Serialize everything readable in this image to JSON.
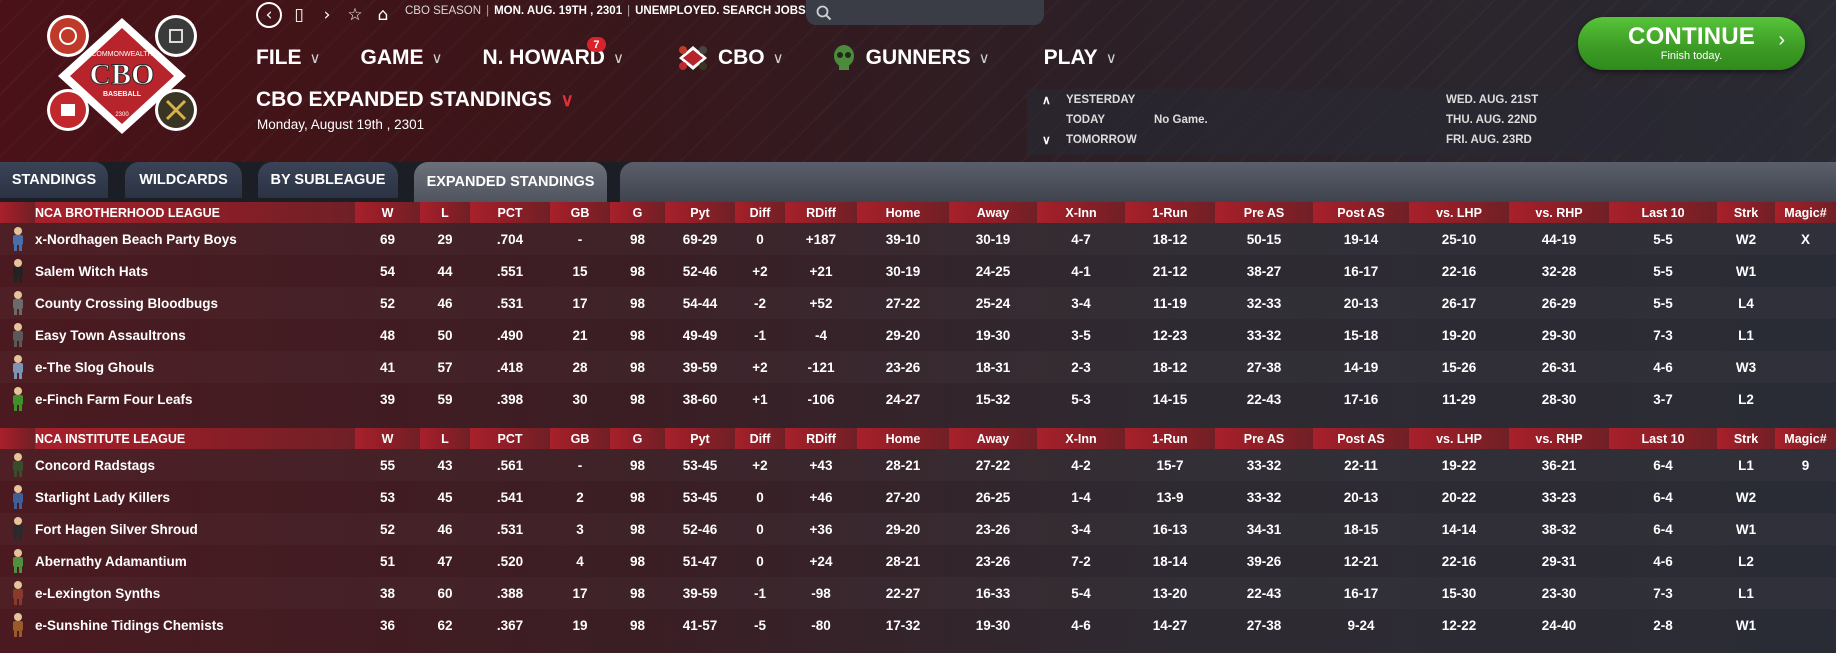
{
  "header": {
    "status": {
      "season": "CBO SEASON",
      "date": "MON. AUG. 19TH , 2301",
      "job": "UNEMPLOYED. SEARCH JOBS..."
    },
    "search_placeholder": "",
    "menu": [
      {
        "label": "FILE"
      },
      {
        "label": "GAME"
      },
      {
        "label": "N. HOWARD",
        "badge": "7"
      },
      {
        "label": "CBO"
      },
      {
        "label": "GUNNERS"
      },
      {
        "label": "PLAY"
      }
    ],
    "page_title": "CBO EXPANDED STANDINGS",
    "page_date": "Monday, August 19th , 2301",
    "logo": {
      "top": "COMMONWEALTH",
      "main": "CBO",
      "sub": "BASEBALL",
      "year": "2300"
    },
    "schedule": {
      "yesterday_label": "YESTERDAY",
      "today_label": "TODAY",
      "today_value": "No Game.",
      "tomorrow_label": "TOMORROW",
      "upcoming": [
        "WED. AUG. 21ST",
        "THU. AUG. 22ND",
        "FRI. AUG. 23RD"
      ]
    },
    "continue": {
      "label": "CONTINUE",
      "sub": "Finish today."
    }
  },
  "tabs": [
    "STANDINGS",
    "WILDCARDS",
    "BY SUBLEAGUE",
    "EXPANDED STANDINGS"
  ],
  "columns": [
    "W",
    "L",
    "PCT",
    "GB",
    "G",
    "Pyt",
    "Diff",
    "RDiff",
    "Home",
    "Away",
    "X-Inn",
    "1-Run",
    "Pre AS",
    "Post AS",
    "vs. LHP",
    "vs. RHP",
    "Last 10",
    "Strk",
    "Magic#"
  ],
  "leagues": [
    {
      "name": "NCA BROTHERHOOD LEAGUE",
      "teams": [
        {
          "name": "x-Nordhagen Beach Party Boys",
          "W": "69",
          "L": "29",
          "PCT": ".704",
          "GB": "-",
          "G": "98",
          "Pyt": "69-29",
          "Diff": "0",
          "RDiff": "+187",
          "Home": "39-10",
          "Away": "30-19",
          "XInn": "4-7",
          "OneRun": "18-12",
          "PreAS": "50-15",
          "PostAS": "19-14",
          "vsLHP": "25-10",
          "vsRHP": "44-19",
          "Last10": "5-5",
          "Strk": "W2",
          "Magic": "X"
        },
        {
          "name": "Salem Witch Hats",
          "W": "54",
          "L": "44",
          "PCT": ".551",
          "GB": "15",
          "G": "98",
          "Pyt": "52-46",
          "Diff": "+2",
          "RDiff": "+21",
          "Home": "30-19",
          "Away": "24-25",
          "XInn": "4-1",
          "OneRun": "21-12",
          "PreAS": "38-27",
          "PostAS": "16-17",
          "vsLHP": "22-16",
          "vsRHP": "32-28",
          "Last10": "5-5",
          "Strk": "W1",
          "Magic": ""
        },
        {
          "name": "County Crossing Bloodbugs",
          "W": "52",
          "L": "46",
          "PCT": ".531",
          "GB": "17",
          "G": "98",
          "Pyt": "54-44",
          "Diff": "-2",
          "RDiff": "+52",
          "Home": "27-22",
          "Away": "25-24",
          "XInn": "3-4",
          "OneRun": "11-19",
          "PreAS": "32-33",
          "PostAS": "20-13",
          "vsLHP": "26-17",
          "vsRHP": "26-29",
          "Last10": "5-5",
          "Strk": "L4",
          "Magic": ""
        },
        {
          "name": "Easy Town Assaultrons",
          "W": "48",
          "L": "50",
          "PCT": ".490",
          "GB": "21",
          "G": "98",
          "Pyt": "49-49",
          "Diff": "-1",
          "RDiff": "-4",
          "Home": "29-20",
          "Away": "19-30",
          "XInn": "3-5",
          "OneRun": "12-23",
          "PreAS": "33-32",
          "PostAS": "15-18",
          "vsLHP": "19-20",
          "vsRHP": "29-30",
          "Last10": "7-3",
          "Strk": "L1",
          "Magic": ""
        },
        {
          "name": "e-The Slog Ghouls",
          "W": "41",
          "L": "57",
          "PCT": ".418",
          "GB": "28",
          "G": "98",
          "Pyt": "39-59",
          "Diff": "+2",
          "RDiff": "-121",
          "Home": "23-26",
          "Away": "18-31",
          "XInn": "2-3",
          "OneRun": "18-12",
          "PreAS": "27-38",
          "PostAS": "14-19",
          "vsLHP": "15-26",
          "vsRHP": "26-31",
          "Last10": "4-6",
          "Strk": "W3",
          "Magic": ""
        },
        {
          "name": "e-Finch Farm Four Leafs",
          "W": "39",
          "L": "59",
          "PCT": ".398",
          "GB": "30",
          "G": "98",
          "Pyt": "38-60",
          "Diff": "+1",
          "RDiff": "-106",
          "Home": "24-27",
          "Away": "15-32",
          "XInn": "5-3",
          "OneRun": "14-15",
          "PreAS": "22-43",
          "PostAS": "17-16",
          "vsLHP": "11-29",
          "vsRHP": "28-30",
          "Last10": "3-7",
          "Strk": "L2",
          "Magic": ""
        }
      ]
    },
    {
      "name": "NCA INSTITUTE LEAGUE",
      "teams": [
        {
          "name": "Concord Radstags",
          "W": "55",
          "L": "43",
          "PCT": ".561",
          "GB": "-",
          "G": "98",
          "Pyt": "53-45",
          "Diff": "+2",
          "RDiff": "+43",
          "Home": "28-21",
          "Away": "27-22",
          "XInn": "4-2",
          "OneRun": "15-7",
          "PreAS": "33-32",
          "PostAS": "22-11",
          "vsLHP": "19-22",
          "vsRHP": "36-21",
          "Last10": "6-4",
          "Strk": "L1",
          "Magic": "9"
        },
        {
          "name": "Starlight Lady Killers",
          "W": "53",
          "L": "45",
          "PCT": ".541",
          "GB": "2",
          "G": "98",
          "Pyt": "53-45",
          "Diff": "0",
          "RDiff": "+46",
          "Home": "27-20",
          "Away": "26-25",
          "XInn": "1-4",
          "OneRun": "13-9",
          "PreAS": "33-32",
          "PostAS": "20-13",
          "vsLHP": "20-22",
          "vsRHP": "33-23",
          "Last10": "6-4",
          "Strk": "W2",
          "Magic": ""
        },
        {
          "name": "Fort Hagen Silver Shroud",
          "W": "52",
          "L": "46",
          "PCT": ".531",
          "GB": "3",
          "G": "98",
          "Pyt": "52-46",
          "Diff": "0",
          "RDiff": "+36",
          "Home": "29-20",
          "Away": "23-26",
          "XInn": "3-4",
          "OneRun": "16-13",
          "PreAS": "34-31",
          "PostAS": "18-15",
          "vsLHP": "14-14",
          "vsRHP": "38-32",
          "Last10": "6-4",
          "Strk": "W1",
          "Magic": ""
        },
        {
          "name": "Abernathy Adamantium",
          "W": "51",
          "L": "47",
          "PCT": ".520",
          "GB": "4",
          "G": "98",
          "Pyt": "51-47",
          "Diff": "0",
          "RDiff": "+24",
          "Home": "28-21",
          "Away": "23-26",
          "XInn": "7-2",
          "OneRun": "18-14",
          "PreAS": "39-26",
          "PostAS": "12-21",
          "vsLHP": "22-16",
          "vsRHP": "29-31",
          "Last10": "4-6",
          "Strk": "L2",
          "Magic": ""
        },
        {
          "name": "e-Lexington Synths",
          "W": "38",
          "L": "60",
          "PCT": ".388",
          "GB": "17",
          "G": "98",
          "Pyt": "39-59",
          "Diff": "-1",
          "RDiff": "-98",
          "Home": "22-27",
          "Away": "16-33",
          "XInn": "5-4",
          "OneRun": "13-20",
          "PreAS": "22-43",
          "PostAS": "16-17",
          "vsLHP": "15-30",
          "vsRHP": "23-30",
          "Last10": "7-3",
          "Strk": "L1",
          "Magic": ""
        },
        {
          "name": "e-Sunshine Tidings Chemists",
          "W": "36",
          "L": "62",
          "PCT": ".367",
          "GB": "19",
          "G": "98",
          "Pyt": "41-57",
          "Diff": "-5",
          "RDiff": "-80",
          "Home": "17-32",
          "Away": "19-30",
          "XInn": "4-6",
          "OneRun": "14-27",
          "PreAS": "27-38",
          "PostAS": "9-24",
          "vsLHP": "12-22",
          "vsRHP": "24-40",
          "Last10": "2-8",
          "Strk": "W1",
          "Magic": ""
        }
      ]
    }
  ],
  "colors": {
    "positive": "#5fe35a",
    "negative": "#ff5454",
    "accent_red": "#a8202a",
    "continue_green": "#3e9d26"
  }
}
